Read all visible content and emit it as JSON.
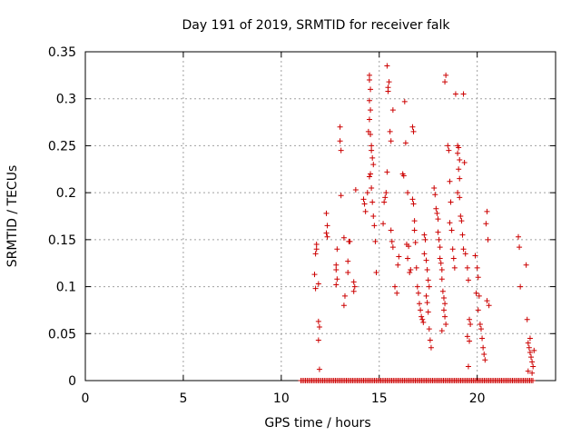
{
  "chart_data": {
    "type": "scatter",
    "title": "Day 191 of 2019, SRMTID for receiver falk",
    "xlabel": "GPS time / hours",
    "ylabel": "SRMTID / TECUs",
    "xlim": [
      0,
      24
    ],
    "ylim": [
      0,
      0.35
    ],
    "xticks": [
      0,
      5,
      10,
      15,
      20
    ],
    "xtick_labels": [
      "0",
      "5",
      "10",
      "15",
      "20"
    ],
    "yticks": [
      0,
      0.05,
      0.1,
      0.15,
      0.2,
      0.25,
      0.3,
      0.35
    ],
    "ytick_labels": [
      "0",
      "0.05",
      "0.1",
      "0.15",
      "0.2",
      "0.25",
      "0.3",
      "0.35"
    ],
    "grid": true,
    "marker": "+",
    "color": "#cc0000",
    "series": [
      {
        "name": "SRMTID",
        "points": [
          [
            11.8,
            0.145
          ],
          [
            11.8,
            0.14
          ],
          [
            11.75,
            0.135
          ],
          [
            11.7,
            0.113
          ],
          [
            11.75,
            0.098
          ],
          [
            11.9,
            0.103
          ],
          [
            11.9,
            0.063
          ],
          [
            11.95,
            0.057
          ],
          [
            11.9,
            0.043
          ],
          [
            11.95,
            0.012
          ],
          [
            12.3,
            0.178
          ],
          [
            12.35,
            0.165
          ],
          [
            12.3,
            0.157
          ],
          [
            12.35,
            0.153
          ],
          [
            12.8,
            0.123
          ],
          [
            12.8,
            0.118
          ],
          [
            12.85,
            0.108
          ],
          [
            12.8,
            0.102
          ],
          [
            12.85,
            0.14
          ],
          [
            13.0,
            0.27
          ],
          [
            13.0,
            0.255
          ],
          [
            13.05,
            0.245
          ],
          [
            13.05,
            0.197
          ],
          [
            13.2,
            0.152
          ],
          [
            13.25,
            0.09
          ],
          [
            13.2,
            0.08
          ],
          [
            13.4,
            0.127
          ],
          [
            13.4,
            0.115
          ],
          [
            13.45,
            0.148
          ],
          [
            13.5,
            0.148
          ],
          [
            13.7,
            0.105
          ],
          [
            13.75,
            0.1
          ],
          [
            13.7,
            0.095
          ],
          [
            13.8,
            0.203
          ],
          [
            14.2,
            0.193
          ],
          [
            14.25,
            0.188
          ],
          [
            14.3,
            0.18
          ],
          [
            14.4,
            0.2
          ],
          [
            14.45,
            0.265
          ],
          [
            14.5,
            0.325
          ],
          [
            14.5,
            0.32
          ],
          [
            14.55,
            0.31
          ],
          [
            14.5,
            0.298
          ],
          [
            14.55,
            0.288
          ],
          [
            14.5,
            0.278
          ],
          [
            14.55,
            0.262
          ],
          [
            14.6,
            0.25
          ],
          [
            14.6,
            0.245
          ],
          [
            14.65,
            0.237
          ],
          [
            14.7,
            0.23
          ],
          [
            14.55,
            0.22
          ],
          [
            14.5,
            0.217
          ],
          [
            14.6,
            0.205
          ],
          [
            14.65,
            0.19
          ],
          [
            14.7,
            0.175
          ],
          [
            14.75,
            0.165
          ],
          [
            14.8,
            0.148
          ],
          [
            14.85,
            0.115
          ],
          [
            15.2,
            0.167
          ],
          [
            15.25,
            0.19
          ],
          [
            15.3,
            0.195
          ],
          [
            15.35,
            0.2
          ],
          [
            15.4,
            0.222
          ],
          [
            15.45,
            0.308
          ],
          [
            15.4,
            0.335
          ],
          [
            15.5,
            0.318
          ],
          [
            15.45,
            0.312
          ],
          [
            15.6,
            0.255
          ],
          [
            15.7,
            0.288
          ],
          [
            15.55,
            0.265
          ],
          [
            15.6,
            0.16
          ],
          [
            15.65,
            0.148
          ],
          [
            15.7,
            0.142
          ],
          [
            15.8,
            0.1
          ],
          [
            15.9,
            0.093
          ],
          [
            15.95,
            0.123
          ],
          [
            16.0,
            0.132
          ],
          [
            16.2,
            0.22
          ],
          [
            16.25,
            0.218
          ],
          [
            16.3,
            0.297
          ],
          [
            16.35,
            0.253
          ],
          [
            16.45,
            0.2
          ],
          [
            16.4,
            0.145
          ],
          [
            16.5,
            0.143
          ],
          [
            16.45,
            0.13
          ],
          [
            16.55,
            0.115
          ],
          [
            16.6,
            0.118
          ],
          [
            16.7,
            0.27
          ],
          [
            16.75,
            0.265
          ],
          [
            16.7,
            0.193
          ],
          [
            16.75,
            0.188
          ],
          [
            16.8,
            0.17
          ],
          [
            16.8,
            0.16
          ],
          [
            16.85,
            0.147
          ],
          [
            16.9,
            0.12
          ],
          [
            16.95,
            0.1
          ],
          [
            17.0,
            0.093
          ],
          [
            17.05,
            0.082
          ],
          [
            17.1,
            0.075
          ],
          [
            17.15,
            0.068
          ],
          [
            17.2,
            0.065
          ],
          [
            17.25,
            0.062
          ],
          [
            17.3,
            0.155
          ],
          [
            17.35,
            0.15
          ],
          [
            17.3,
            0.135
          ],
          [
            17.4,
            0.128
          ],
          [
            17.45,
            0.118
          ],
          [
            17.5,
            0.107
          ],
          [
            17.55,
            0.1
          ],
          [
            17.4,
            0.09
          ],
          [
            17.45,
            0.083
          ],
          [
            17.5,
            0.073
          ],
          [
            17.55,
            0.055
          ],
          [
            17.6,
            0.043
          ],
          [
            17.65,
            0.035
          ],
          [
            17.8,
            0.205
          ],
          [
            17.85,
            0.198
          ],
          [
            17.9,
            0.183
          ],
          [
            17.95,
            0.178
          ],
          [
            18.0,
            0.172
          ],
          [
            18.0,
            0.158
          ],
          [
            18.05,
            0.15
          ],
          [
            18.1,
            0.142
          ],
          [
            18.1,
            0.13
          ],
          [
            18.15,
            0.125
          ],
          [
            18.2,
            0.118
          ],
          [
            18.2,
            0.108
          ],
          [
            18.25,
            0.095
          ],
          [
            18.3,
            0.088
          ],
          [
            18.35,
            0.082
          ],
          [
            18.3,
            0.075
          ],
          [
            18.35,
            0.068
          ],
          [
            18.4,
            0.06
          ],
          [
            18.2,
            0.053
          ],
          [
            18.4,
            0.325
          ],
          [
            18.35,
            0.318
          ],
          [
            18.5,
            0.25
          ],
          [
            18.55,
            0.245
          ],
          [
            18.6,
            0.212
          ],
          [
            18.65,
            0.19
          ],
          [
            18.6,
            0.168
          ],
          [
            18.7,
            0.16
          ],
          [
            18.75,
            0.14
          ],
          [
            18.8,
            0.13
          ],
          [
            18.85,
            0.12
          ],
          [
            18.9,
            0.305
          ],
          [
            19.0,
            0.25
          ],
          [
            19.05,
            0.248
          ],
          [
            19.0,
            0.242
          ],
          [
            19.1,
            0.235
          ],
          [
            19.05,
            0.225
          ],
          [
            19.1,
            0.215
          ],
          [
            19.0,
            0.2
          ],
          [
            19.1,
            0.195
          ],
          [
            19.15,
            0.175
          ],
          [
            19.2,
            0.17
          ],
          [
            19.3,
            0.305
          ],
          [
            19.35,
            0.232
          ],
          [
            19.25,
            0.155
          ],
          [
            19.3,
            0.14
          ],
          [
            19.4,
            0.135
          ],
          [
            19.5,
            0.12
          ],
          [
            19.55,
            0.107
          ],
          [
            19.6,
            0.065
          ],
          [
            19.65,
            0.06
          ],
          [
            19.5,
            0.047
          ],
          [
            19.6,
            0.042
          ],
          [
            19.55,
            0.015
          ],
          [
            19.9,
            0.133
          ],
          [
            20.0,
            0.12
          ],
          [
            20.05,
            0.11
          ],
          [
            19.95,
            0.093
          ],
          [
            20.1,
            0.09
          ],
          [
            20.05,
            0.075
          ],
          [
            20.15,
            0.06
          ],
          [
            20.2,
            0.055
          ],
          [
            20.25,
            0.045
          ],
          [
            20.3,
            0.035
          ],
          [
            20.35,
            0.028
          ],
          [
            20.4,
            0.022
          ],
          [
            20.5,
            0.18
          ],
          [
            20.45,
            0.167
          ],
          [
            20.55,
            0.15
          ],
          [
            20.5,
            0.085
          ],
          [
            20.6,
            0.08
          ],
          [
            22.1,
            0.153
          ],
          [
            22.15,
            0.142
          ],
          [
            22.2,
            0.1
          ],
          [
            22.5,
            0.123
          ],
          [
            22.55,
            0.065
          ],
          [
            22.6,
            0.04
          ],
          [
            22.65,
            0.035
          ],
          [
            22.7,
            0.03
          ],
          [
            22.75,
            0.025
          ],
          [
            22.8,
            0.02
          ],
          [
            22.85,
            0.015
          ],
          [
            22.6,
            0.01
          ],
          [
            22.9,
            0.032
          ],
          [
            22.7,
            0.045
          ],
          [
            22.8,
            0.008
          ]
        ]
      }
    ],
    "zero_run": {
      "x_start": 11.0,
      "x_end": 22.9,
      "step": 0.08,
      "y": 0
    }
  }
}
